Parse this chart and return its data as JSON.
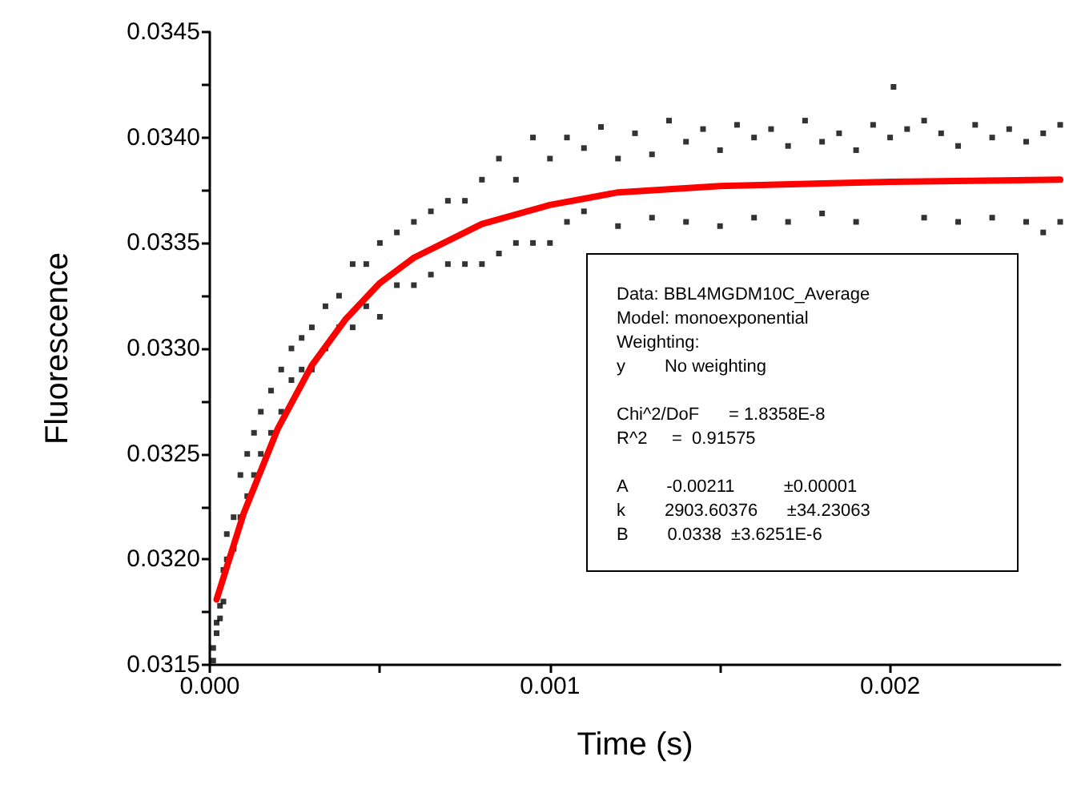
{
  "chart_data": {
    "type": "scatter",
    "xlabel": "Time (s)",
    "ylabel": "Fluorescence",
    "xlim": [
      0,
      0.0025
    ],
    "ylim": [
      0.0315,
      0.0345
    ],
    "xticks": [
      {
        "value": 0,
        "label": "0.000"
      },
      {
        "value": 0.0005,
        "label": null
      },
      {
        "value": 0.001,
        "label": "0.001"
      },
      {
        "value": 0.0015,
        "label": null
      },
      {
        "value": 0.002,
        "label": "0.002"
      }
    ],
    "yticks": [
      0.0315,
      {
        "value": 0.03175,
        "label": null
      },
      {
        "value": 0.032,
        "label": "0.0320"
      },
      {
        "value": 0.03225,
        "label": null
      },
      0.0325,
      {
        "value": 0.03275,
        "label": null
      },
      {
        "value": 0.033,
        "label": "0.0330"
      },
      {
        "value": 0.03325,
        "label": null
      },
      0.0335,
      {
        "value": 0.03375,
        "label": null
      },
      {
        "value": 0.034,
        "label": "0.0340"
      },
      {
        "value": 0.03425,
        "label": null
      },
      0.0345
    ],
    "grid": false,
    "series": [
      {
        "color": "#000000",
        "marker": "square",
        "x": [
          1e-05,
          1e-05,
          2e-05,
          2e-05,
          3e-05,
          3e-05,
          4e-05,
          4e-05,
          5e-05,
          5e-05,
          7e-05,
          7e-05,
          9e-05,
          9e-05,
          0.00011,
          0.00011,
          0.00013,
          0.00013,
          0.00015,
          0.00015,
          0.00018,
          0.00018,
          0.00021,
          0.00021,
          0.00024,
          0.00024,
          0.00027,
          0.00027,
          0.0003,
          0.0003,
          0.00034,
          0.00034,
          0.00038,
          0.00038,
          0.00042,
          0.00042,
          0.00046,
          0.00046,
          0.0005,
          0.0005,
          0.00055,
          0.00055,
          0.0006,
          0.0006,
          0.00065,
          0.00065,
          0.0007,
          0.0007,
          0.00075,
          0.00075,
          0.0008,
          0.0008,
          0.00085,
          0.00085,
          0.0009,
          0.0009,
          0.00095,
          0.00095,
          0.001,
          0.001,
          0.00105,
          0.00105,
          0.0011,
          0.0011,
          0.00115,
          0.0012,
          0.0012,
          0.00125,
          0.0013,
          0.0013,
          0.00135,
          0.0014,
          0.0014,
          0.00145,
          0.0015,
          0.0015,
          0.00155,
          0.0016,
          0.0016,
          0.00165,
          0.0017,
          0.0017,
          0.00175,
          0.0018,
          0.0018,
          0.00185,
          0.0019,
          0.0019,
          0.00195,
          0.002,
          0.00201,
          0.00205,
          0.0021,
          0.0021,
          0.00215,
          0.0022,
          0.0022,
          0.00225,
          0.0023,
          0.0023,
          0.00235,
          0.0024,
          0.0024,
          0.00245,
          0.00245,
          0.0025,
          0.0025
        ],
        "values": [
          0.03152,
          0.03158,
          0.03165,
          0.0317,
          0.03178,
          0.03172,
          0.03195,
          0.0318,
          0.032,
          0.03212,
          0.0322,
          0.03205,
          0.0324,
          0.0322,
          0.0325,
          0.0323,
          0.0326,
          0.0324,
          0.0327,
          0.0325,
          0.0328,
          0.0326,
          0.0329,
          0.0327,
          0.033,
          0.03285,
          0.03305,
          0.0329,
          0.0331,
          0.0329,
          0.0332,
          0.033,
          0.03325,
          0.0331,
          0.0334,
          0.0331,
          0.0334,
          0.0332,
          0.0335,
          0.03315,
          0.03355,
          0.0333,
          0.0336,
          0.0333,
          0.03365,
          0.03335,
          0.0337,
          0.0334,
          0.0337,
          0.0334,
          0.0338,
          0.0334,
          0.0339,
          0.03345,
          0.0338,
          0.0335,
          0.034,
          0.0335,
          0.0339,
          0.0335,
          0.034,
          0.0336,
          0.03395,
          0.03365,
          0.03405,
          0.0339,
          0.03358,
          0.03402,
          0.03392,
          0.03362,
          0.03408,
          0.03398,
          0.0336,
          0.03404,
          0.03394,
          0.03358,
          0.03406,
          0.034,
          0.03362,
          0.03404,
          0.03396,
          0.0336,
          0.03408,
          0.03398,
          0.03364,
          0.03402,
          0.03394,
          0.0336,
          0.03406,
          0.034,
          0.03424,
          0.03404,
          0.03408,
          0.03362,
          0.03402,
          0.03396,
          0.0336,
          0.03406,
          0.034,
          0.03362,
          0.03404,
          0.03398,
          0.0336,
          0.03402,
          0.03355,
          0.03406,
          0.0336
        ]
      },
      {
        "type": "line",
        "color": "#ff0000",
        "marker": "none",
        "line_style": "solid",
        "x": [
          2e-05,
          0.0001,
          0.0002,
          0.0003,
          0.0004,
          0.0005,
          0.0006,
          0.0008,
          0.001,
          0.0012,
          0.0015,
          0.002,
          0.0025
        ],
        "values": [
          0.03181,
          0.03222,
          0.03262,
          0.03292,
          0.03314,
          0.03331,
          0.03343,
          0.03359,
          0.03368,
          0.03374,
          0.03377,
          0.03379,
          0.0338
        ]
      }
    ],
    "annotations": [
      "Data: BBL4MGDM10C_Average\nModel: monoexponential\nWeighting:\ny        No weighting",
      "Chi^2/DoF      = 1.8358E-8\nR^2     =  0.91575",
      "A        -0.00211          ±0.00001\nk        2903.60376      ±34.23063\nB        0.0338  ±3.6251E-6"
    ]
  }
}
